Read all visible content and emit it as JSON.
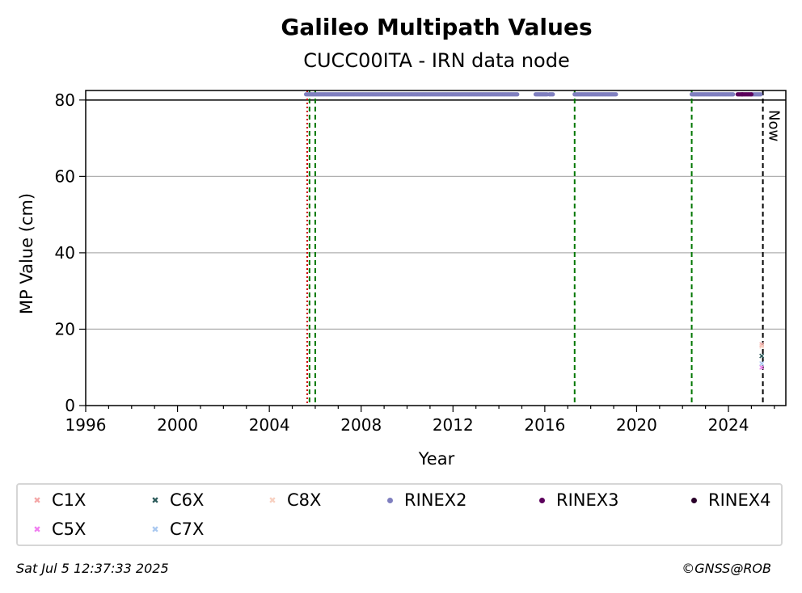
{
  "chart_data": {
    "type": "scatter",
    "title": "Galileo Multipath Values",
    "subtitle": "CUCC00ITA - IRN data node",
    "xlabel": "Year",
    "ylabel": "MP Value (cm)",
    "xlim": [
      1996,
      2026.5
    ],
    "ylim": [
      0,
      82.5
    ],
    "x_ticks": [
      "1996",
      "2000",
      "2004",
      "2008",
      "2012",
      "2016",
      "2020",
      "2024"
    ],
    "x_tick_values": [
      1996,
      2000,
      2004,
      2008,
      2012,
      2016,
      2020,
      2024
    ],
    "y_ticks": [
      "0",
      "20",
      "40",
      "60",
      "80"
    ],
    "y_tick_values": [
      0,
      20,
      40,
      60,
      80
    ],
    "grid": "horizontal",
    "threshold_line": 80,
    "vlines": [
      {
        "x": 2005.65,
        "style": "dotted",
        "color": "#cc0000"
      },
      {
        "x": 2005.75,
        "style": "dashed",
        "color": "#007700"
      },
      {
        "x": 2006.0,
        "style": "dashed",
        "color": "#007700"
      },
      {
        "x": 2017.3,
        "style": "dashed",
        "color": "#007700"
      },
      {
        "x": 2022.4,
        "style": "dashed",
        "color": "#007700"
      },
      {
        "x": 2025.5,
        "style": "dashed",
        "color": "#000000",
        "label": "Now"
      }
    ],
    "series": [
      {
        "name": "C1X",
        "marker": "x",
        "color": "#f4a6a6",
        "points": [
          [
            2025.45,
            16
          ]
        ]
      },
      {
        "name": "C5X",
        "marker": "x",
        "color": "#f07df0",
        "points": [
          [
            2025.45,
            10
          ]
        ]
      },
      {
        "name": "C6X",
        "marker": "x",
        "color": "#2b5a5a",
        "points": [
          [
            2025.45,
            13
          ]
        ]
      },
      {
        "name": "C7X",
        "marker": "x",
        "color": "#a9c8f0",
        "points": [
          [
            2025.45,
            11
          ]
        ]
      },
      {
        "name": "C8X",
        "marker": "x",
        "color": "#f8d0c0",
        "points": [
          [
            2025.45,
            15.5
          ]
        ]
      },
      {
        "name": "RINEX2",
        "marker": "o",
        "color": "#7f7fbf",
        "value": 81.5,
        "ranges": [
          [
            2005.6,
            2014.8
          ],
          [
            2015.6,
            2016.1
          ],
          [
            2016.2,
            2016.35
          ],
          [
            2017.3,
            2019.1
          ],
          [
            2022.4,
            2024.2
          ],
          [
            2025.0,
            2025.4
          ]
        ]
      },
      {
        "name": "RINEX3",
        "marker": "o",
        "color": "#5c005c",
        "value": 81.5,
        "ranges": [
          [
            2024.4,
            2024.6
          ],
          [
            2024.6,
            2025.0
          ]
        ]
      },
      {
        "name": "RINEX4",
        "marker": "o",
        "color": "#2a002a",
        "value": 81.5,
        "ranges": []
      }
    ]
  },
  "legend": {
    "items": [
      {
        "name": "C1X",
        "marker": "x",
        "color": "#f4a6a6"
      },
      {
        "name": "C6X",
        "marker": "x",
        "color": "#2b5a5a"
      },
      {
        "name": "C8X",
        "marker": "x",
        "color": "#f8d0c0"
      },
      {
        "name": "RINEX2",
        "marker": "o",
        "color": "#7f7fbf"
      },
      {
        "name": "RINEX3",
        "marker": "o",
        "color": "#5c005c"
      },
      {
        "name": "RINEX4",
        "marker": "o",
        "color": "#2a002a"
      },
      {
        "name": "C5X",
        "marker": "x",
        "color": "#f07df0"
      },
      {
        "name": "C7X",
        "marker": "x",
        "color": "#a9c8f0"
      }
    ]
  },
  "footer": {
    "timestamp": "Sat Jul  5 12:37:33 2025",
    "copyright": "©GNSS@ROB"
  }
}
